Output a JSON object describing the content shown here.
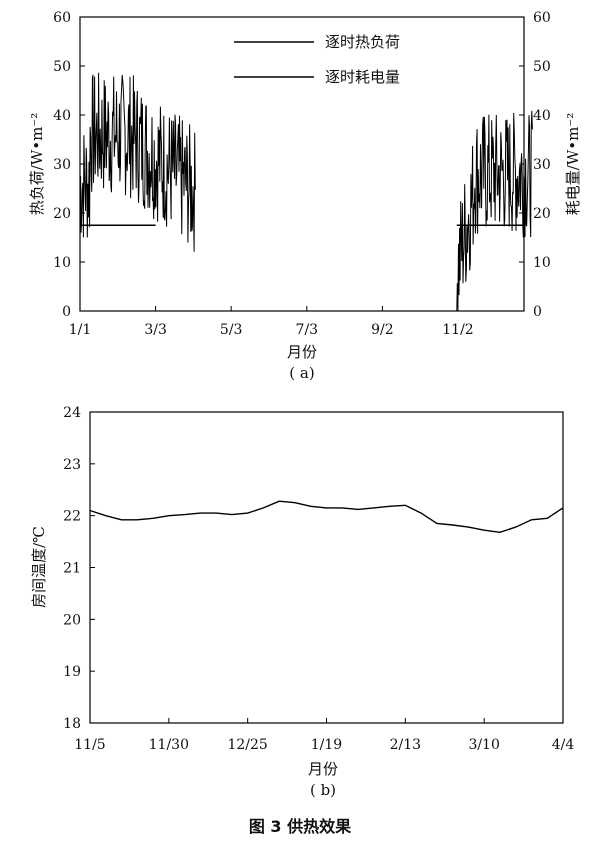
{
  "figure_caption": "图 3  供热效果",
  "chart_data": [
    {
      "type": "line",
      "panel_label": "( a)",
      "xlabel": "月份",
      "ylabel_left": "热负荷/W•m⁻²",
      "ylabel_right": "耗电量/W•m⁻²",
      "x_ticks": [
        "1/1",
        "3/3",
        "5/3",
        "7/3",
        "9/2",
        "11/2"
      ],
      "ylim": [
        0,
        60
      ],
      "y_ticks": [
        0,
        10,
        20,
        30,
        40,
        50,
        60
      ],
      "legend_position": "top-center",
      "series": [
        {
          "name": "逐时热负荷",
          "values_description": "hourly heat load, heating season only",
          "segments": [
            {
              "from": "1/1",
              "to": "4/4",
              "min": 4,
              "max": 51
            },
            {
              "from": "11/1",
              "to": "12/31",
              "min": 0,
              "max": 45
            }
          ]
        },
        {
          "name": "逐时耗电量",
          "values_description": "hourly power consumption, approximately constant",
          "segments": [
            {
              "from": "1/1",
              "to": "3/3",
              "value": 17.5
            },
            {
              "from": "11/1",
              "to": "12/31",
              "value": 17.5
            }
          ]
        }
      ]
    },
    {
      "type": "line",
      "panel_label": "( b)",
      "xlabel": "月份",
      "ylabel": "房间温度/℃",
      "x_ticks": [
        "11/5",
        "11/30",
        "12/25",
        "1/19",
        "2/13",
        "3/10",
        "4/4"
      ],
      "ylim": [
        18,
        24
      ],
      "y_ticks": [
        18,
        19,
        20,
        21,
        22,
        23,
        24
      ],
      "series": [
        {
          "name": "",
          "x_days_from_11_5": [
            0,
            5,
            10,
            15,
            20,
            25,
            30,
            35,
            40,
            45,
            50,
            55,
            60,
            65,
            70,
            75,
            80,
            85,
            90,
            95,
            100,
            105,
            110,
            115,
            120,
            125,
            130,
            135,
            140,
            145,
            150
          ],
          "values": [
            22.1,
            22.0,
            21.92,
            21.92,
            21.95,
            22.0,
            22.02,
            22.05,
            22.05,
            22.02,
            22.05,
            22.15,
            22.28,
            22.25,
            22.18,
            22.15,
            22.15,
            22.12,
            22.15,
            22.18,
            22.2,
            22.05,
            21.85,
            21.82,
            21.78,
            21.72,
            21.68,
            21.78,
            21.92,
            21.95,
            22.15
          ]
        }
      ]
    }
  ]
}
